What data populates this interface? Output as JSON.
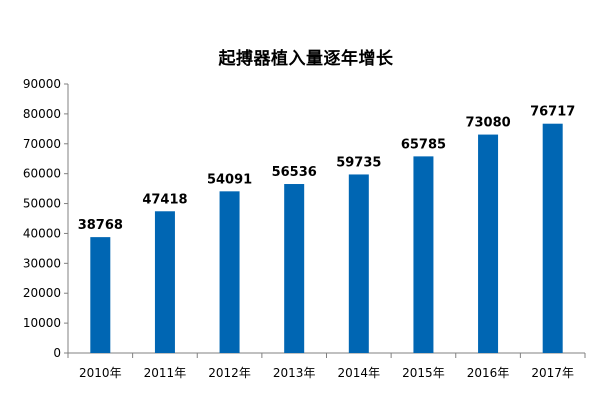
{
  "chart_data": {
    "type": "bar",
    "title": "起搏器植入量逐年增长",
    "categories": [
      "2010年",
      "2011年",
      "2012年",
      "2013年",
      "2014年",
      "2015年",
      "2016年",
      "2017年"
    ],
    "values": [
      38768,
      47418,
      54091,
      56536,
      59735,
      65785,
      73080,
      76717
    ],
    "data_labels": [
      "38768",
      "47418",
      "54091",
      "56536",
      "59735",
      "65785",
      "73080",
      "76717"
    ],
    "yticks": [
      "0",
      "10000",
      "20000",
      "30000",
      "40000",
      "50000",
      "60000",
      "70000",
      "80000",
      "90000"
    ],
    "ylim": [
      0,
      90000
    ],
    "xlabel": "",
    "ylabel": "",
    "grid": false,
    "legend": "none",
    "bar_color": "#0066B3"
  }
}
